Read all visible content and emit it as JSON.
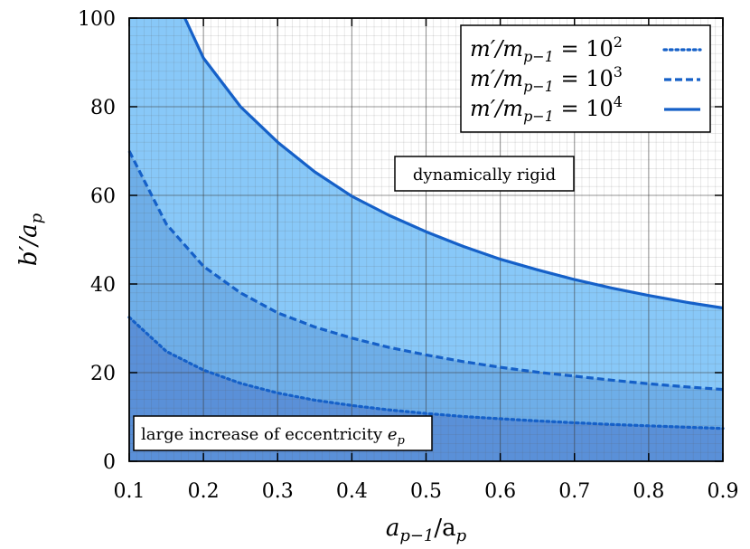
{
  "chart_data": {
    "type": "line",
    "title": "",
    "xlabel": "a_{p-1}/a_p",
    "ylabel": "b'/a_p",
    "xlim": [
      0.1,
      0.9
    ],
    "ylim": [
      0,
      100
    ],
    "xticks": [
      0.1,
      0.2,
      0.3,
      0.4,
      0.5,
      0.6,
      0.7,
      0.8,
      0.9
    ],
    "yticks": [
      0,
      20,
      40,
      60,
      80,
      100
    ],
    "xtick_labels": [
      "0.1",
      "0.2",
      "0.3",
      "0.4",
      "0.5",
      "0.6",
      "0.7",
      "0.8",
      "0.9"
    ],
    "ytick_labels": [
      "0",
      "20",
      "40",
      "60",
      "80",
      "100"
    ],
    "grid": true,
    "legend_position": "top-right",
    "series": [
      {
        "name": "m′/m_{p−1} = 10^2",
        "legend_base": "m′/m",
        "legend_sub": "p−1",
        "legend_eq": " = 10",
        "legend_exp": "2",
        "style": "dotted",
        "color": "#1560c8",
        "x": [
          0.1,
          0.15,
          0.2,
          0.25,
          0.3,
          0.35,
          0.4,
          0.45,
          0.5,
          0.55,
          0.6,
          0.65,
          0.7,
          0.75,
          0.8,
          0.85,
          0.9
        ],
        "y": [
          32.5,
          24.8,
          20.6,
          17.6,
          15.4,
          13.8,
          12.6,
          11.6,
          10.8,
          10.1,
          9.6,
          9.1,
          8.7,
          8.3,
          8.0,
          7.7,
          7.4
        ]
      },
      {
        "name": "m′/m_{p−1} = 10^3",
        "legend_base": "m′/m",
        "legend_sub": "p−1",
        "legend_eq": " = 10",
        "legend_exp": "3",
        "style": "dashed",
        "color": "#1560c8",
        "x": [
          0.1,
          0.15,
          0.2,
          0.25,
          0.3,
          0.35,
          0.4,
          0.45,
          0.5,
          0.55,
          0.6,
          0.65,
          0.7,
          0.75,
          0.8,
          0.85,
          0.9
        ],
        "y": [
          70.0,
          53.5,
          44.0,
          38.0,
          33.5,
          30.3,
          27.8,
          25.7,
          24.0,
          22.5,
          21.2,
          20.1,
          19.2,
          18.3,
          17.5,
          16.8,
          16.2
        ]
      },
      {
        "name": "m′/m_{p−1} = 10^4",
        "legend_base": "m′/m",
        "legend_sub": "p−1",
        "legend_eq": " = 10",
        "legend_exp": "4",
        "style": "solid",
        "color": "#1560c8",
        "x": [
          0.175,
          0.2,
          0.25,
          0.3,
          0.35,
          0.4,
          0.45,
          0.5,
          0.55,
          0.6,
          0.65,
          0.7,
          0.75,
          0.8,
          0.85,
          0.9
        ],
        "y": [
          100.0,
          91.0,
          80.0,
          72.0,
          65.3,
          59.8,
          55.5,
          51.8,
          48.5,
          45.6,
          43.2,
          41.0,
          39.1,
          37.4,
          35.9,
          34.6
        ]
      }
    ],
    "regions": [
      {
        "name": "above-10^4",
        "color": "#ffffff"
      },
      {
        "name": "between-10^3-10^4",
        "color": "#88c8f8"
      },
      {
        "name": "between-10^2-10^3",
        "color": "#6eaee8"
      },
      {
        "name": "below-10^2",
        "color": "#5a90d8"
      }
    ],
    "annotations": [
      {
        "name": "dynamically-rigid",
        "text": "dynamically rigid"
      },
      {
        "name": "eccentricity-increase",
        "text": "large increase of eccentricity ",
        "math": "e",
        "math_sub": "p"
      }
    ]
  }
}
